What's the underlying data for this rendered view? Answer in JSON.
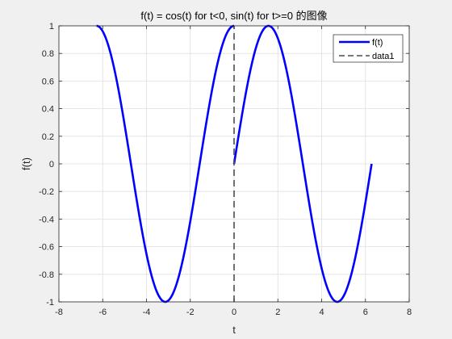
{
  "chart_data": {
    "type": "line",
    "title": "f(t) = cos(t) for t<0, sin(t) for t>=0 的图像",
    "xlabel": "t",
    "ylabel": "f(t)",
    "xlim": [
      -8,
      8
    ],
    "ylim": [
      -1,
      1
    ],
    "grid": true,
    "legend_position": "top-right",
    "x_ticks": [
      -8,
      -6,
      -4,
      -2,
      0,
      2,
      4,
      6,
      8
    ],
    "y_ticks": [
      -1,
      -0.8,
      -0.6,
      -0.4,
      -0.2,
      0,
      0.2,
      0.4,
      0.6,
      0.8,
      1
    ],
    "x_tick_labels": [
      "-8",
      "-6",
      "-4",
      "-2",
      "0",
      "2",
      "4",
      "6",
      "8"
    ],
    "y_tick_labels": [
      "-1",
      "-0.8",
      "-0.6",
      "-0.4",
      "-0.2",
      "0",
      "0.2",
      "0.4",
      "0.6",
      "0.8",
      "1"
    ],
    "series": [
      {
        "name": "f(t)",
        "style": "solid",
        "color": "#0000ff",
        "segments": [
          {
            "function": "cos",
            "x": [
              -6.2832,
              -6.0,
              -5.5,
              -5.0,
              -4.5,
              -4.0,
              -3.5,
              -3.1416,
              -3.0,
              -2.5,
              -2.0,
              -1.5,
              -1.0,
              -0.5,
              0.0
            ],
            "y": [
              1.0,
              0.96,
              0.709,
              0.284,
              -0.211,
              -0.654,
              -0.936,
              -1.0,
              -0.99,
              -0.801,
              -0.416,
              0.071,
              0.54,
              0.878,
              1.0
            ]
          },
          {
            "function": "sin",
            "x": [
              0.0,
              0.5,
              1.0,
              1.5708,
              2.0,
              2.5,
              3.0,
              3.5,
              4.0,
              4.5,
              4.7124,
              5.0,
              5.5,
              6.0,
              6.2832
            ],
            "y": [
              0.0,
              0.479,
              0.841,
              1.0,
              0.909,
              0.598,
              0.141,
              -0.351,
              -0.757,
              -0.978,
              -1.0,
              -0.959,
              -0.706,
              -0.279,
              0.0
            ]
          }
        ]
      },
      {
        "name": "data1",
        "style": "dashed",
        "color": "#4d4d4d",
        "x": [
          0,
          0
        ],
        "y": [
          -1,
          1
        ]
      }
    ]
  }
}
